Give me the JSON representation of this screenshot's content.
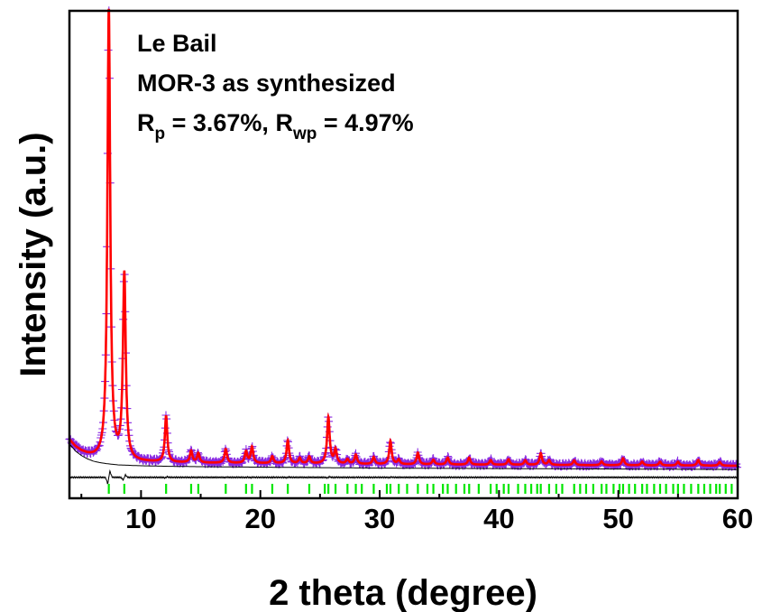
{
  "chart_data": {
    "type": "line",
    "xlabel": "2 theta (degree)",
    "ylabel": "Intensity (a.u.)",
    "xlim": [
      4,
      60
    ],
    "ylim": [
      -0.05,
      1.0
    ],
    "xticks": [
      "10",
      "20",
      "30",
      "40",
      "50",
      "60"
    ],
    "xtick_values": [
      10,
      20,
      30,
      40,
      50,
      60
    ],
    "yticks_shown": false,
    "grid": false,
    "annotations": {
      "line1": "Le Bail",
      "line2": "MOR-3 as synthesized",
      "rp_label": "R",
      "rp_sub": "p",
      "rp_value": " = 3.67%, ",
      "rwp_label": "R",
      "rwp_sub": "wp",
      "rwp_value": " = 4.97%"
    },
    "background": {
      "description_points_x": [
        4.0,
        4.5,
        5.0,
        5.5,
        6.0,
        6.5,
        7.0,
        8.0,
        9.0,
        10.0,
        12.0,
        15.0,
        20.0,
        30.0,
        40.0,
        50.0,
        60.0
      ],
      "values": [
        0.075,
        0.06,
        0.05,
        0.043,
        0.038,
        0.035,
        0.033,
        0.03,
        0.029,
        0.028,
        0.027,
        0.026,
        0.025,
        0.023,
        0.022,
        0.021,
        0.02
      ]
    },
    "peaks": [
      {
        "pos": 7.3,
        "height": 0.97,
        "width": 0.14
      },
      {
        "pos": 8.6,
        "height": 0.4,
        "width": 0.14
      },
      {
        "pos": 12.1,
        "height": 0.1,
        "width": 0.12
      },
      {
        "pos": 14.2,
        "height": 0.025,
        "width": 0.12
      },
      {
        "pos": 14.8,
        "height": 0.02,
        "width": 0.12
      },
      {
        "pos": 17.1,
        "height": 0.03,
        "width": 0.12
      },
      {
        "pos": 18.8,
        "height": 0.025,
        "width": 0.12
      },
      {
        "pos": 19.3,
        "height": 0.035,
        "width": 0.12
      },
      {
        "pos": 21.0,
        "height": 0.015,
        "width": 0.12
      },
      {
        "pos": 22.3,
        "height": 0.05,
        "width": 0.12
      },
      {
        "pos": 23.3,
        "height": 0.012,
        "width": 0.12
      },
      {
        "pos": 24.1,
        "height": 0.015,
        "width": 0.12
      },
      {
        "pos": 25.7,
        "height": 0.1,
        "width": 0.13
      },
      {
        "pos": 26.3,
        "height": 0.03,
        "width": 0.12
      },
      {
        "pos": 27.3,
        "height": 0.01,
        "width": 0.12
      },
      {
        "pos": 28.0,
        "height": 0.02,
        "width": 0.12
      },
      {
        "pos": 29.5,
        "height": 0.015,
        "width": 0.12
      },
      {
        "pos": 30.9,
        "height": 0.05,
        "width": 0.12
      },
      {
        "pos": 31.6,
        "height": 0.01,
        "width": 0.12
      },
      {
        "pos": 33.2,
        "height": 0.025,
        "width": 0.12
      },
      {
        "pos": 34.5,
        "height": 0.01,
        "width": 0.12
      },
      {
        "pos": 35.7,
        "height": 0.015,
        "width": 0.12
      },
      {
        "pos": 37.5,
        "height": 0.015,
        "width": 0.12
      },
      {
        "pos": 39.3,
        "height": 0.01,
        "width": 0.12
      },
      {
        "pos": 40.8,
        "height": 0.012,
        "width": 0.12
      },
      {
        "pos": 42.2,
        "height": 0.01,
        "width": 0.12
      },
      {
        "pos": 43.5,
        "height": 0.025,
        "width": 0.12
      },
      {
        "pos": 44.2,
        "height": 0.01,
        "width": 0.12
      },
      {
        "pos": 46.3,
        "height": 0.01,
        "width": 0.12
      },
      {
        "pos": 48.6,
        "height": 0.008,
        "width": 0.12
      },
      {
        "pos": 50.4,
        "height": 0.015,
        "width": 0.12
      },
      {
        "pos": 52.0,
        "height": 0.008,
        "width": 0.12
      },
      {
        "pos": 53.5,
        "height": 0.008,
        "width": 0.12
      },
      {
        "pos": 55.0,
        "height": 0.008,
        "width": 0.12
      },
      {
        "pos": 56.7,
        "height": 0.012,
        "width": 0.12
      },
      {
        "pos": 58.5,
        "height": 0.008,
        "width": 0.12
      }
    ],
    "difference_baseline": -0.005,
    "series": [
      {
        "role": "observed",
        "marker": "+",
        "color": "#8a2be2"
      },
      {
        "role": "calculated",
        "color": "#ff0000"
      },
      {
        "role": "background",
        "color": "#000000"
      },
      {
        "role": "difference",
        "color": "#000000"
      },
      {
        "role": "bragg_positions",
        "color": "#00e600"
      }
    ],
    "bragg_positions": [
      7.3,
      8.6,
      12.1,
      14.2,
      14.8,
      17.1,
      18.8,
      19.3,
      21.0,
      22.3,
      24.1,
      25.4,
      25.7,
      26.3,
      27.3,
      28.0,
      28.5,
      29.5,
      30.6,
      30.9,
      31.6,
      32.3,
      33.2,
      34.0,
      34.5,
      35.3,
      35.7,
      36.4,
      37.1,
      37.5,
      38.3,
      39.3,
      39.8,
      40.4,
      40.8,
      41.6,
      42.2,
      42.7,
      43.2,
      43.5,
      44.2,
      44.8,
      45.3,
      46.3,
      46.8,
      47.3,
      47.9,
      48.6,
      49.0,
      49.6,
      50.1,
      50.4,
      50.9,
      51.4,
      52.0,
      52.4,
      53.0,
      53.5,
      54.0,
      54.6,
      55.0,
      55.5,
      56.1,
      56.7,
      57.2,
      57.7,
      58.2,
      58.5,
      59.0,
      59.5
    ]
  }
}
